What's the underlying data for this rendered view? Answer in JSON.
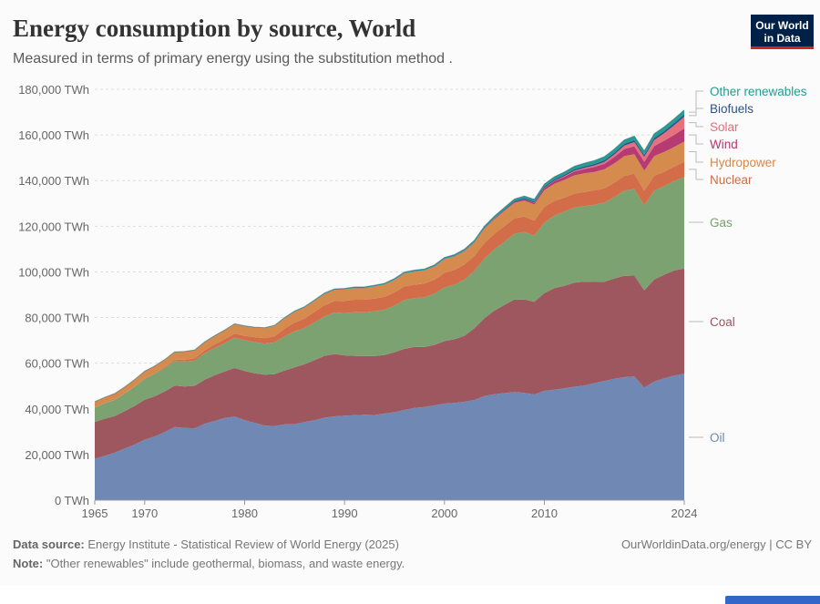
{
  "header": {
    "title": "Energy consumption by source, World",
    "subtitle": "Measured in terms of primary energy using the substitution method .",
    "logo_line1": "Our World",
    "logo_line2": "in Data"
  },
  "footer": {
    "source_label": "Data source:",
    "source_text": "Energy Institute - Statistical Review of World Energy (2025)",
    "note_label": "Note:",
    "note_text": "\"Other renewables\" include geothermal, biomass, and waste energy.",
    "credit": "OurWorldinData.org/energy | CC BY"
  },
  "bottom_strip": {
    "visible_text": ""
  },
  "chart_data": {
    "type": "area",
    "stacked": true,
    "title": "Energy consumption by source, World",
    "subtitle": "Measured in terms of primary energy using the substitution method .",
    "xlabel": "",
    "ylabel": "",
    "unit": "TWh",
    "ylim": [
      0,
      180000
    ],
    "xlim": [
      1965,
      2024
    ],
    "grid": "horizontal dashed",
    "legend_placement": "right (inline labels at series end)",
    "y_ticks": [
      "0 TWh",
      "20,000 TWh",
      "40,000 TWh",
      "60,000 TWh",
      "80,000 TWh",
      "100,000 TWh",
      "120,000 TWh",
      "140,000 TWh",
      "160,000 TWh",
      "180,000 TWh"
    ],
    "y_tick_values": [
      0,
      20000,
      40000,
      60000,
      80000,
      100000,
      120000,
      140000,
      160000,
      180000
    ],
    "x_ticks": [
      1965,
      1970,
      1980,
      1990,
      2000,
      2010,
      2024
    ],
    "x": [
      1965,
      1966,
      1967,
      1968,
      1969,
      1970,
      1971,
      1972,
      1973,
      1974,
      1975,
      1976,
      1977,
      1978,
      1979,
      1980,
      1981,
      1982,
      1983,
      1984,
      1985,
      1986,
      1987,
      1988,
      1989,
      1990,
      1991,
      1992,
      1993,
      1994,
      1995,
      1996,
      1997,
      1998,
      1999,
      2000,
      2001,
      2002,
      2003,
      2004,
      2005,
      2006,
      2007,
      2008,
      2009,
      2010,
      2011,
      2012,
      2013,
      2014,
      2015,
      2016,
      2017,
      2018,
      2019,
      2020,
      2021,
      2022,
      2023,
      2024
    ],
    "series": [
      {
        "name": "Oil",
        "color": "#6d87b2",
        "values": [
          18100,
          19400,
          20800,
          22600,
          24400,
          26500,
          27900,
          29800,
          32000,
          31600,
          31500,
          33500,
          34700,
          36000,
          36600,
          35000,
          33900,
          32700,
          32500,
          33200,
          33300,
          34200,
          35000,
          36100,
          36700,
          37000,
          37200,
          37400,
          37300,
          37900,
          38500,
          39500,
          40400,
          40800,
          41500,
          42300,
          42600,
          43100,
          43900,
          45600,
          46400,
          46900,
          47400,
          47000,
          46300,
          47900,
          48400,
          49000,
          49700,
          50200,
          51300,
          52200,
          53200,
          53900,
          54200,
          49300,
          52000,
          53400,
          54600,
          55300
        ]
      },
      {
        "name": "Coal",
        "color": "#9d545c",
        "values": [
          16200,
          16300,
          16000,
          16400,
          16900,
          17500,
          17600,
          17800,
          18200,
          18200,
          18600,
          19300,
          20000,
          20400,
          21300,
          21600,
          21700,
          22300,
          22700,
          23600,
          24900,
          25400,
          26300,
          27100,
          27300,
          26400,
          26000,
          25700,
          25800,
          25700,
          26300,
          26800,
          26700,
          26300,
          26500,
          27400,
          27900,
          28900,
          31400,
          34100,
          36600,
          38600,
          40500,
          40900,
          40600,
          42800,
          44500,
          44900,
          45600,
          45500,
          44300,
          43500,
          43900,
          44400,
          44200,
          42600,
          44700,
          45400,
          46000,
          46200
        ]
      },
      {
        "name": "Gas",
        "color": "#79a06e",
        "values": [
          6300,
          6700,
          7100,
          7700,
          8400,
          9200,
          9800,
          10300,
          10800,
          11000,
          11000,
          11600,
          12000,
          12400,
          13300,
          13500,
          13600,
          13600,
          13900,
          15000,
          15700,
          15800,
          16600,
          17300,
          18200,
          18600,
          19100,
          19200,
          19600,
          19800,
          20400,
          21400,
          21400,
          21800,
          22400,
          23500,
          23900,
          24600,
          25200,
          26200,
          26900,
          27700,
          28800,
          29600,
          29000,
          31000,
          31700,
          32500,
          32900,
          33100,
          33800,
          34600,
          35600,
          37300,
          37900,
          37300,
          38900,
          38800,
          39200,
          40100
        ]
      },
      {
        "name": "Nuclear",
        "color": "#d26a45",
        "values": [
          70,
          90,
          110,
          140,
          180,
          220,
          300,
          400,
          560,
          700,
          1000,
          1200,
          1500,
          1700,
          1800,
          1900,
          2200,
          2400,
          2700,
          3300,
          3900,
          4200,
          4600,
          4900,
          5000,
          5300,
          5500,
          5500,
          5600,
          5700,
          5800,
          6000,
          5900,
          6000,
          6200,
          6400,
          6500,
          6600,
          6500,
          6800,
          6800,
          6900,
          6800,
          6700,
          6600,
          6800,
          6500,
          6100,
          6100,
          6200,
          6300,
          6300,
          6400,
          6500,
          6700,
          6400,
          6600,
          6300,
          6400,
          6600
        ]
      },
      {
        "name": "Hydropower",
        "color": "#d4894a",
        "values": [
          2400,
          2500,
          2600,
          2700,
          2900,
          3000,
          3100,
          3200,
          3300,
          3500,
          3600,
          3600,
          3700,
          3900,
          4100,
          4200,
          4200,
          4300,
          4500,
          4600,
          4700,
          4800,
          4800,
          4900,
          4900,
          5000,
          5100,
          5100,
          5300,
          5300,
          5500,
          5600,
          5700,
          5700,
          5700,
          5900,
          5800,
          5800,
          5800,
          6200,
          6400,
          6600,
          6700,
          7000,
          7000,
          7300,
          7500,
          7800,
          8000,
          8200,
          8100,
          8300,
          8400,
          8600,
          8600,
          8800,
          8600,
          8700,
          8500,
          8900
        ]
      },
      {
        "name": "Wind",
        "color": "#b5376f",
        "values": [
          0,
          0,
          0,
          0,
          0,
          0,
          0,
          0,
          0,
          0,
          0,
          0,
          0,
          0,
          0,
          0,
          0,
          0,
          0,
          0,
          0,
          0,
          0,
          0,
          10,
          10,
          10,
          20,
          20,
          20,
          20,
          30,
          30,
          40,
          60,
          80,
          100,
          140,
          170,
          230,
          280,
          360,
          460,
          590,
          740,
          920,
          1150,
          1360,
          1650,
          1830,
          2150,
          2420,
          2800,
          3130,
          3450,
          3830,
          4360,
          4880,
          5340,
          5780
        ]
      },
      {
        "name": "Solar",
        "color": "#e56e7a",
        "values": [
          0,
          0,
          0,
          0,
          0,
          0,
          0,
          0,
          0,
          0,
          0,
          0,
          0,
          0,
          0,
          0,
          0,
          0,
          0,
          0,
          0,
          0,
          0,
          0,
          0,
          0,
          0,
          0,
          0,
          0,
          0,
          0,
          0,
          0,
          0,
          10,
          10,
          10,
          10,
          10,
          20,
          20,
          20,
          40,
          60,
          90,
          170,
          260,
          350,
          470,
          600,
          800,
          1100,
          1450,
          1790,
          2160,
          2620,
          3320,
          4190,
          5050
        ]
      },
      {
        "name": "Biofuels",
        "color": "#2c5187",
        "values": [
          0,
          0,
          0,
          0,
          0,
          0,
          0,
          0,
          0,
          0,
          0,
          0,
          0,
          0,
          0,
          0,
          10,
          20,
          30,
          40,
          50,
          50,
          60,
          60,
          60,
          60,
          70,
          70,
          70,
          70,
          70,
          80,
          90,
          90,
          90,
          90,
          100,
          120,
          150,
          170,
          210,
          280,
          370,
          460,
          520,
          580,
          600,
          620,
          670,
          720,
          740,
          770,
          800,
          850,
          890,
          850,
          930,
          960,
          1030,
          1080
        ]
      },
      {
        "name": "Other renewables",
        "color": "#1c9d91",
        "values": [
          60,
          70,
          70,
          80,
          90,
          90,
          100,
          110,
          120,
          120,
          130,
          140,
          160,
          170,
          180,
          180,
          200,
          230,
          260,
          300,
          320,
          340,
          360,
          380,
          400,
          400,
          420,
          440,
          470,
          480,
          500,
          530,
          550,
          580,
          600,
          630,
          640,
          680,
          720,
          760,
          790,
          830,
          890,
          950,
          990,
          1100,
          1150,
          1230,
          1320,
          1420,
          1490,
          1560,
          1610,
          1680,
          1740,
          1770,
          1840,
          1850,
          1870,
          1910
        ]
      }
    ],
    "legend": [
      "Other renewables",
      "Biofuels",
      "Solar",
      "Wind",
      "Hydropower",
      "Nuclear",
      "Gas",
      "Coal",
      "Oil"
    ]
  }
}
